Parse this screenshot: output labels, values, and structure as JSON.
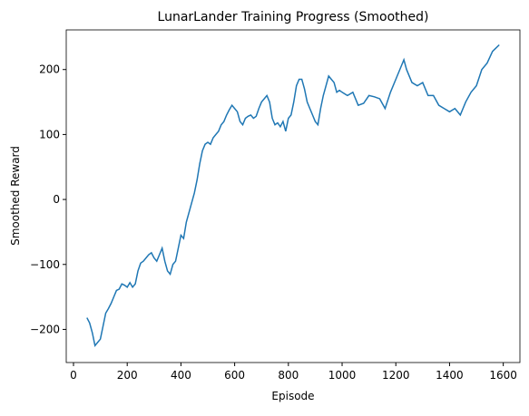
{
  "chart_data": {
    "type": "line",
    "title": "LunarLander Training Progress (Smoothed)",
    "xlabel": "Episode",
    "ylabel": "Smoothed Reward",
    "x": [
      50,
      60,
      70,
      80,
      90,
      100,
      110,
      120,
      130,
      140,
      150,
      160,
      170,
      180,
      190,
      200,
      210,
      220,
      230,
      240,
      250,
      260,
      270,
      280,
      290,
      300,
      310,
      320,
      330,
      340,
      350,
      360,
      370,
      380,
      390,
      400,
      410,
      420,
      430,
      440,
      450,
      460,
      470,
      480,
      490,
      500,
      510,
      520,
      530,
      540,
      550,
      560,
      570,
      580,
      590,
      600,
      610,
      620,
      630,
      640,
      650,
      660,
      670,
      680,
      690,
      700,
      710,
      720,
      730,
      740,
      750,
      760,
      770,
      780,
      790,
      800,
      810,
      820,
      830,
      840,
      850,
      860,
      870,
      880,
      890,
      900,
      910,
      920,
      930,
      940,
      950,
      960,
      970,
      980,
      990,
      1000,
      1020,
      1040,
      1060,
      1080,
      1100,
      1120,
      1140,
      1160,
      1180,
      1200,
      1220,
      1230,
      1240,
      1260,
      1280,
      1300,
      1320,
      1340,
      1360,
      1380,
      1400,
      1420,
      1440,
      1460,
      1480,
      1500,
      1520,
      1540,
      1560,
      1570,
      1585
    ],
    "series": [
      {
        "name": "Smoothed Reward",
        "color": "#1f77b4",
        "values": [
          -182,
          -190,
          -205,
          -225,
          -220,
          -215,
          -195,
          -175,
          -168,
          -160,
          -150,
          -140,
          -138,
          -130,
          -132,
          -135,
          -128,
          -135,
          -130,
          -110,
          -98,
          -95,
          -90,
          -85,
          -82,
          -90,
          -95,
          -85,
          -75,
          -95,
          -110,
          -115,
          -100,
          -95,
          -75,
          -55,
          -60,
          -35,
          -20,
          -5,
          10,
          30,
          55,
          75,
          85,
          88,
          85,
          95,
          100,
          105,
          115,
          120,
          130,
          138,
          145,
          140,
          135,
          120,
          115,
          125,
          128,
          130,
          125,
          128,
          140,
          150,
          155,
          160,
          150,
          125,
          115,
          118,
          112,
          120,
          105,
          125,
          130,
          150,
          175,
          185,
          185,
          170,
          150,
          140,
          130,
          120,
          115,
          140,
          160,
          175,
          190,
          185,
          180,
          165,
          168,
          165,
          160,
          165,
          145,
          148,
          160,
          158,
          155,
          140,
          165,
          185,
          205,
          215,
          200,
          180,
          175,
          180,
          160,
          160,
          145,
          140,
          135,
          140,
          130,
          150,
          165,
          175,
          200,
          210,
          228,
          232,
          238
        ]
      }
    ],
    "xlim": [
      -27,
      1662
    ],
    "ylim": [
      -251,
      261
    ],
    "xticks": [
      0,
      200,
      400,
      600,
      800,
      1000,
      1200,
      1400,
      1600
    ],
    "yticks": [
      {
        "value": -200,
        "label": "−200"
      },
      {
        "value": -100,
        "label": "−100"
      },
      0,
      100,
      200
    ],
    "grid": false
  }
}
